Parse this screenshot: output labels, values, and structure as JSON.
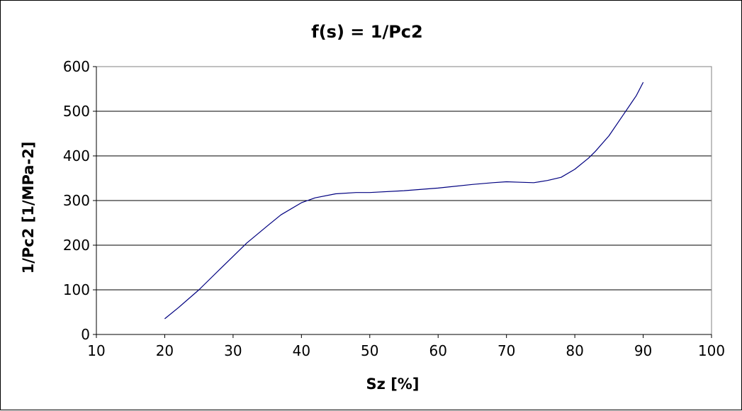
{
  "chart_data": {
    "type": "line",
    "title": "f(s) = 1/Pc2",
    "xlabel": "Sz [%]",
    "ylabel": "1/Pc2 [1/MPa-2]",
    "xlim": [
      10,
      100
    ],
    "ylim": [
      0,
      600
    ],
    "xticks": [
      10,
      20,
      30,
      40,
      50,
      60,
      70,
      80,
      90,
      100
    ],
    "yticks": [
      0,
      100,
      200,
      300,
      400,
      500,
      600
    ],
    "grid": "horizontal",
    "legend": "none",
    "series": [
      {
        "name": "1/Pc2",
        "color": "#000080",
        "x": [
          20,
          22,
          25,
          28,
          30,
          32,
          35,
          37,
          40,
          42,
          45,
          48,
          50,
          55,
          60,
          65,
          68,
          70,
          72,
          74,
          76,
          78,
          80,
          82,
          83,
          85,
          87,
          89,
          90
        ],
        "y": [
          35,
          60,
          100,
          145,
          175,
          205,
          243,
          268,
          295,
          306,
          315,
          318,
          318,
          322,
          328,
          336,
          340,
          342,
          341,
          340,
          345,
          352,
          370,
          395,
          410,
          445,
          490,
          535,
          565
        ]
      }
    ]
  }
}
